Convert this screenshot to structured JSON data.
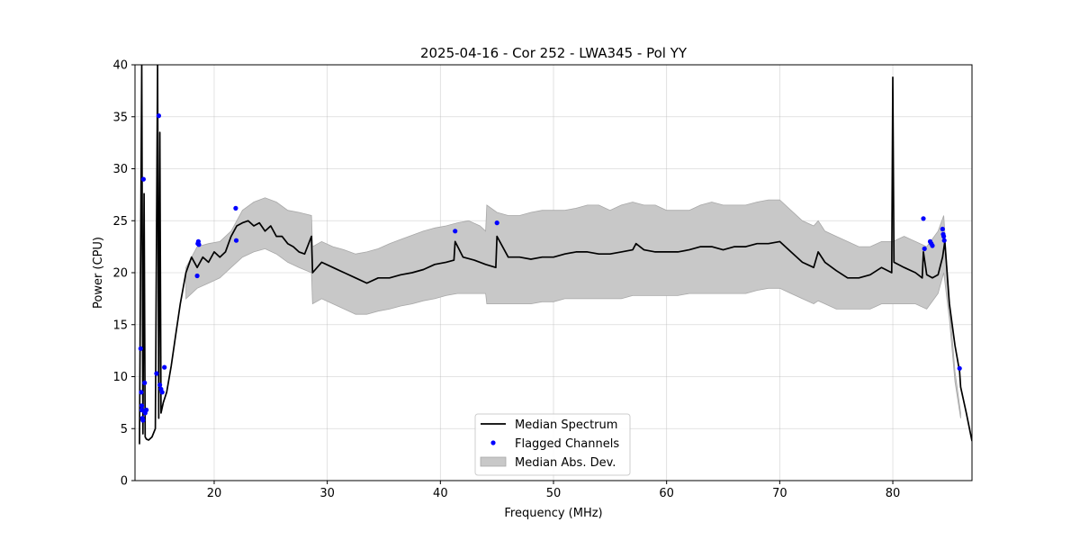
{
  "chart_data": {
    "type": "line",
    "title": "2025-04-16 - Cor 252 - LWA345 - Pol YY",
    "xlabel": "Frequency (MHz)",
    "ylabel": "Power (CPU)",
    "xlim": [
      13,
      87
    ],
    "ylim": [
      0,
      40
    ],
    "xticks": [
      20,
      30,
      40,
      50,
      60,
      70,
      80
    ],
    "yticks": [
      0,
      5,
      10,
      15,
      20,
      25,
      30,
      35,
      40
    ],
    "grid": true,
    "legend": {
      "placement": "lower-center",
      "entries": [
        "Median Spectrum",
        "Flagged Channels",
        "Median Abs. Dev."
      ]
    },
    "series": [
      {
        "name": "Median Spectrum",
        "color": "#000000",
        "x": [
          13.4,
          13.6,
          13.7,
          13.8,
          13.9,
          14.0,
          14.2,
          14.5,
          14.8,
          15.0,
          15.1,
          15.2,
          15.3,
          15.5,
          15.8,
          16.2,
          16.6,
          17.0,
          17.5,
          18.0,
          18.5,
          19.0,
          19.5,
          20.0,
          20.5,
          21.0,
          21.5,
          22.0,
          22.5,
          23.0,
          23.5,
          24.0,
          24.5,
          25.0,
          25.5,
          26.0,
          26.5,
          27.0,
          27.5,
          28.0,
          28.6,
          28.7,
          29.5,
          30.5,
          31.5,
          32.5,
          33.5,
          34.5,
          35.5,
          36.5,
          37.5,
          38.5,
          39.5,
          40.5,
          41.2,
          41.3,
          42.0,
          43.0,
          44.0,
          44.9,
          45.0,
          46.0,
          47.0,
          48.0,
          49.0,
          50.0,
          51.0,
          52.0,
          53.0,
          54.0,
          55.0,
          56.0,
          57.0,
          57.3,
          58.0,
          59.0,
          60.0,
          61.0,
          62.0,
          63.0,
          64.0,
          65.0,
          66.0,
          67.0,
          68.0,
          69.0,
          70.0,
          71.0,
          72.0,
          73.0,
          73.4,
          74.0,
          75.0,
          76.0,
          77.0,
          78.0,
          79.0,
          79.9,
          80.0,
          80.1,
          81.0,
          82.0,
          82.6,
          82.7,
          83.0,
          83.5,
          84.0,
          84.4,
          84.6,
          85.0,
          85.5,
          85.9,
          86.0,
          86.5,
          87.0
        ],
        "y": [
          3.5,
          40,
          4.5,
          27.6,
          4.2,
          4.0,
          3.9,
          4.2,
          5.0,
          40,
          6.0,
          33.5,
          6.5,
          7.5,
          8.5,
          11.0,
          14.0,
          17.0,
          20.0,
          21.5,
          20.5,
          21.5,
          21.0,
          22.0,
          21.5,
          22.0,
          23.5,
          24.5,
          24.8,
          25.0,
          24.5,
          24.8,
          24.0,
          24.5,
          23.5,
          23.5,
          22.8,
          22.5,
          22.0,
          21.8,
          23.5,
          20.0,
          21.0,
          20.5,
          20.0,
          19.5,
          19.0,
          19.5,
          19.5,
          19.8,
          20.0,
          20.3,
          20.8,
          21.0,
          21.2,
          23.0,
          21.5,
          21.2,
          20.8,
          20.5,
          23.5,
          21.5,
          21.5,
          21.3,
          21.5,
          21.5,
          21.8,
          22.0,
          22.0,
          21.8,
          21.8,
          22.0,
          22.2,
          22.8,
          22.2,
          22.0,
          22.0,
          22.0,
          22.2,
          22.5,
          22.5,
          22.2,
          22.5,
          22.5,
          22.8,
          22.8,
          23.0,
          22.0,
          21.0,
          20.5,
          22.0,
          21.0,
          20.2,
          19.5,
          19.5,
          19.8,
          20.5,
          20.0,
          38.8,
          21.0,
          20.5,
          20.0,
          19.5,
          22.0,
          19.8,
          19.5,
          19.8,
          21.5,
          23.0,
          17.0,
          13.0,
          10.5,
          9.0,
          6.5,
          3.8
        ]
      }
    ],
    "band": {
      "name": "Median Abs. Dev.",
      "color": "#c8c8c8",
      "x": [
        17.5,
        18.5,
        19.5,
        20.5,
        21.5,
        22.5,
        23.5,
        24.5,
        25.5,
        26.5,
        27.5,
        28.6,
        28.7,
        29.5,
        30.5,
        31.5,
        32.5,
        33.5,
        34.5,
        35.5,
        36.5,
        37.5,
        38.5,
        39.5,
        40.5,
        41.5,
        42.5,
        43.5,
        44.0,
        44.1,
        45.0,
        46.0,
        47.0,
        48.0,
        49.0,
        50.0,
        51.0,
        52.0,
        53.0,
        54.0,
        55.0,
        56.0,
        57.0,
        58.0,
        59.0,
        60.0,
        61.0,
        62.0,
        63.0,
        64.0,
        65.0,
        66.0,
        67.0,
        68.0,
        69.0,
        70.0,
        71.0,
        72.0,
        73.0,
        73.4,
        74.0,
        75.0,
        76.0,
        77.0,
        78.0,
        79.0,
        80.0,
        81.0,
        82.0,
        83.0,
        84.0,
        84.5,
        85.0,
        85.5,
        86.0
      ],
      "upper": [
        20.5,
        22.5,
        22.8,
        23.0,
        24.0,
        26.0,
        26.8,
        27.2,
        26.8,
        26.0,
        25.8,
        25.5,
        22.5,
        23.0,
        22.5,
        22.2,
        21.8,
        22.0,
        22.3,
        22.8,
        23.2,
        23.6,
        24.0,
        24.3,
        24.5,
        24.8,
        25.0,
        24.5,
        24.0,
        26.5,
        25.8,
        25.5,
        25.5,
        25.8,
        26.0,
        26.0,
        26.0,
        26.2,
        26.5,
        26.5,
        26.0,
        26.5,
        26.8,
        26.5,
        26.5,
        26.0,
        26.0,
        26.0,
        26.5,
        26.8,
        26.5,
        26.5,
        26.5,
        26.8,
        27.0,
        27.0,
        26.0,
        25.0,
        24.5,
        25.0,
        24.0,
        23.5,
        23.0,
        22.5,
        22.5,
        23.0,
        23.0,
        23.5,
        23.0,
        22.5,
        24.0,
        25.5,
        17.0,
        10.5,
        6.5
      ],
      "lower": [
        17.5,
        18.5,
        19.0,
        19.5,
        20.5,
        21.5,
        22.0,
        22.3,
        21.8,
        21.0,
        20.5,
        20.0,
        17.0,
        17.5,
        17.0,
        16.5,
        16.0,
        16.0,
        16.3,
        16.5,
        16.8,
        17.0,
        17.3,
        17.5,
        17.8,
        18.0,
        18.0,
        18.0,
        18.0,
        17.0,
        17.0,
        17.0,
        17.0,
        17.0,
        17.2,
        17.2,
        17.5,
        17.5,
        17.5,
        17.5,
        17.5,
        17.5,
        17.8,
        17.8,
        17.8,
        17.8,
        17.8,
        18.0,
        18.0,
        18.0,
        18.0,
        18.0,
        18.0,
        18.3,
        18.5,
        18.5,
        18.0,
        17.5,
        17.0,
        17.3,
        17.0,
        16.5,
        16.5,
        16.5,
        16.5,
        17.0,
        17.0,
        17.0,
        17.0,
        16.5,
        18.0,
        20.0,
        15.5,
        9.5,
        6.0
      ]
    },
    "flagged": {
      "name": "Flagged Channels",
      "color": "#0000ff",
      "x": [
        13.5,
        13.55,
        13.6,
        13.6,
        13.65,
        13.7,
        13.75,
        13.8,
        13.85,
        13.9,
        14.0,
        14.9,
        15.1,
        15.2,
        15.3,
        15.4,
        15.6,
        18.5,
        18.55,
        18.6,
        18.65,
        21.9,
        21.95,
        41.3,
        45.0,
        82.7,
        82.8,
        83.3,
        83.4,
        83.5,
        84.4,
        84.45,
        84.5,
        84.55,
        85.9
      ],
      "y": [
        12.7,
        8.5,
        7.2,
        6.8,
        6.0,
        5.8,
        29.0,
        6.7,
        9.4,
        6.5,
        6.8,
        10.3,
        35.1,
        9.2,
        8.8,
        8.5,
        10.9,
        19.7,
        22.8,
        23.0,
        22.7,
        26.2,
        23.1,
        24.0,
        24.8,
        25.2,
        22.3,
        23.0,
        22.8,
        22.6,
        24.2,
        23.7,
        23.5,
        23.1,
        10.8
      ]
    }
  }
}
